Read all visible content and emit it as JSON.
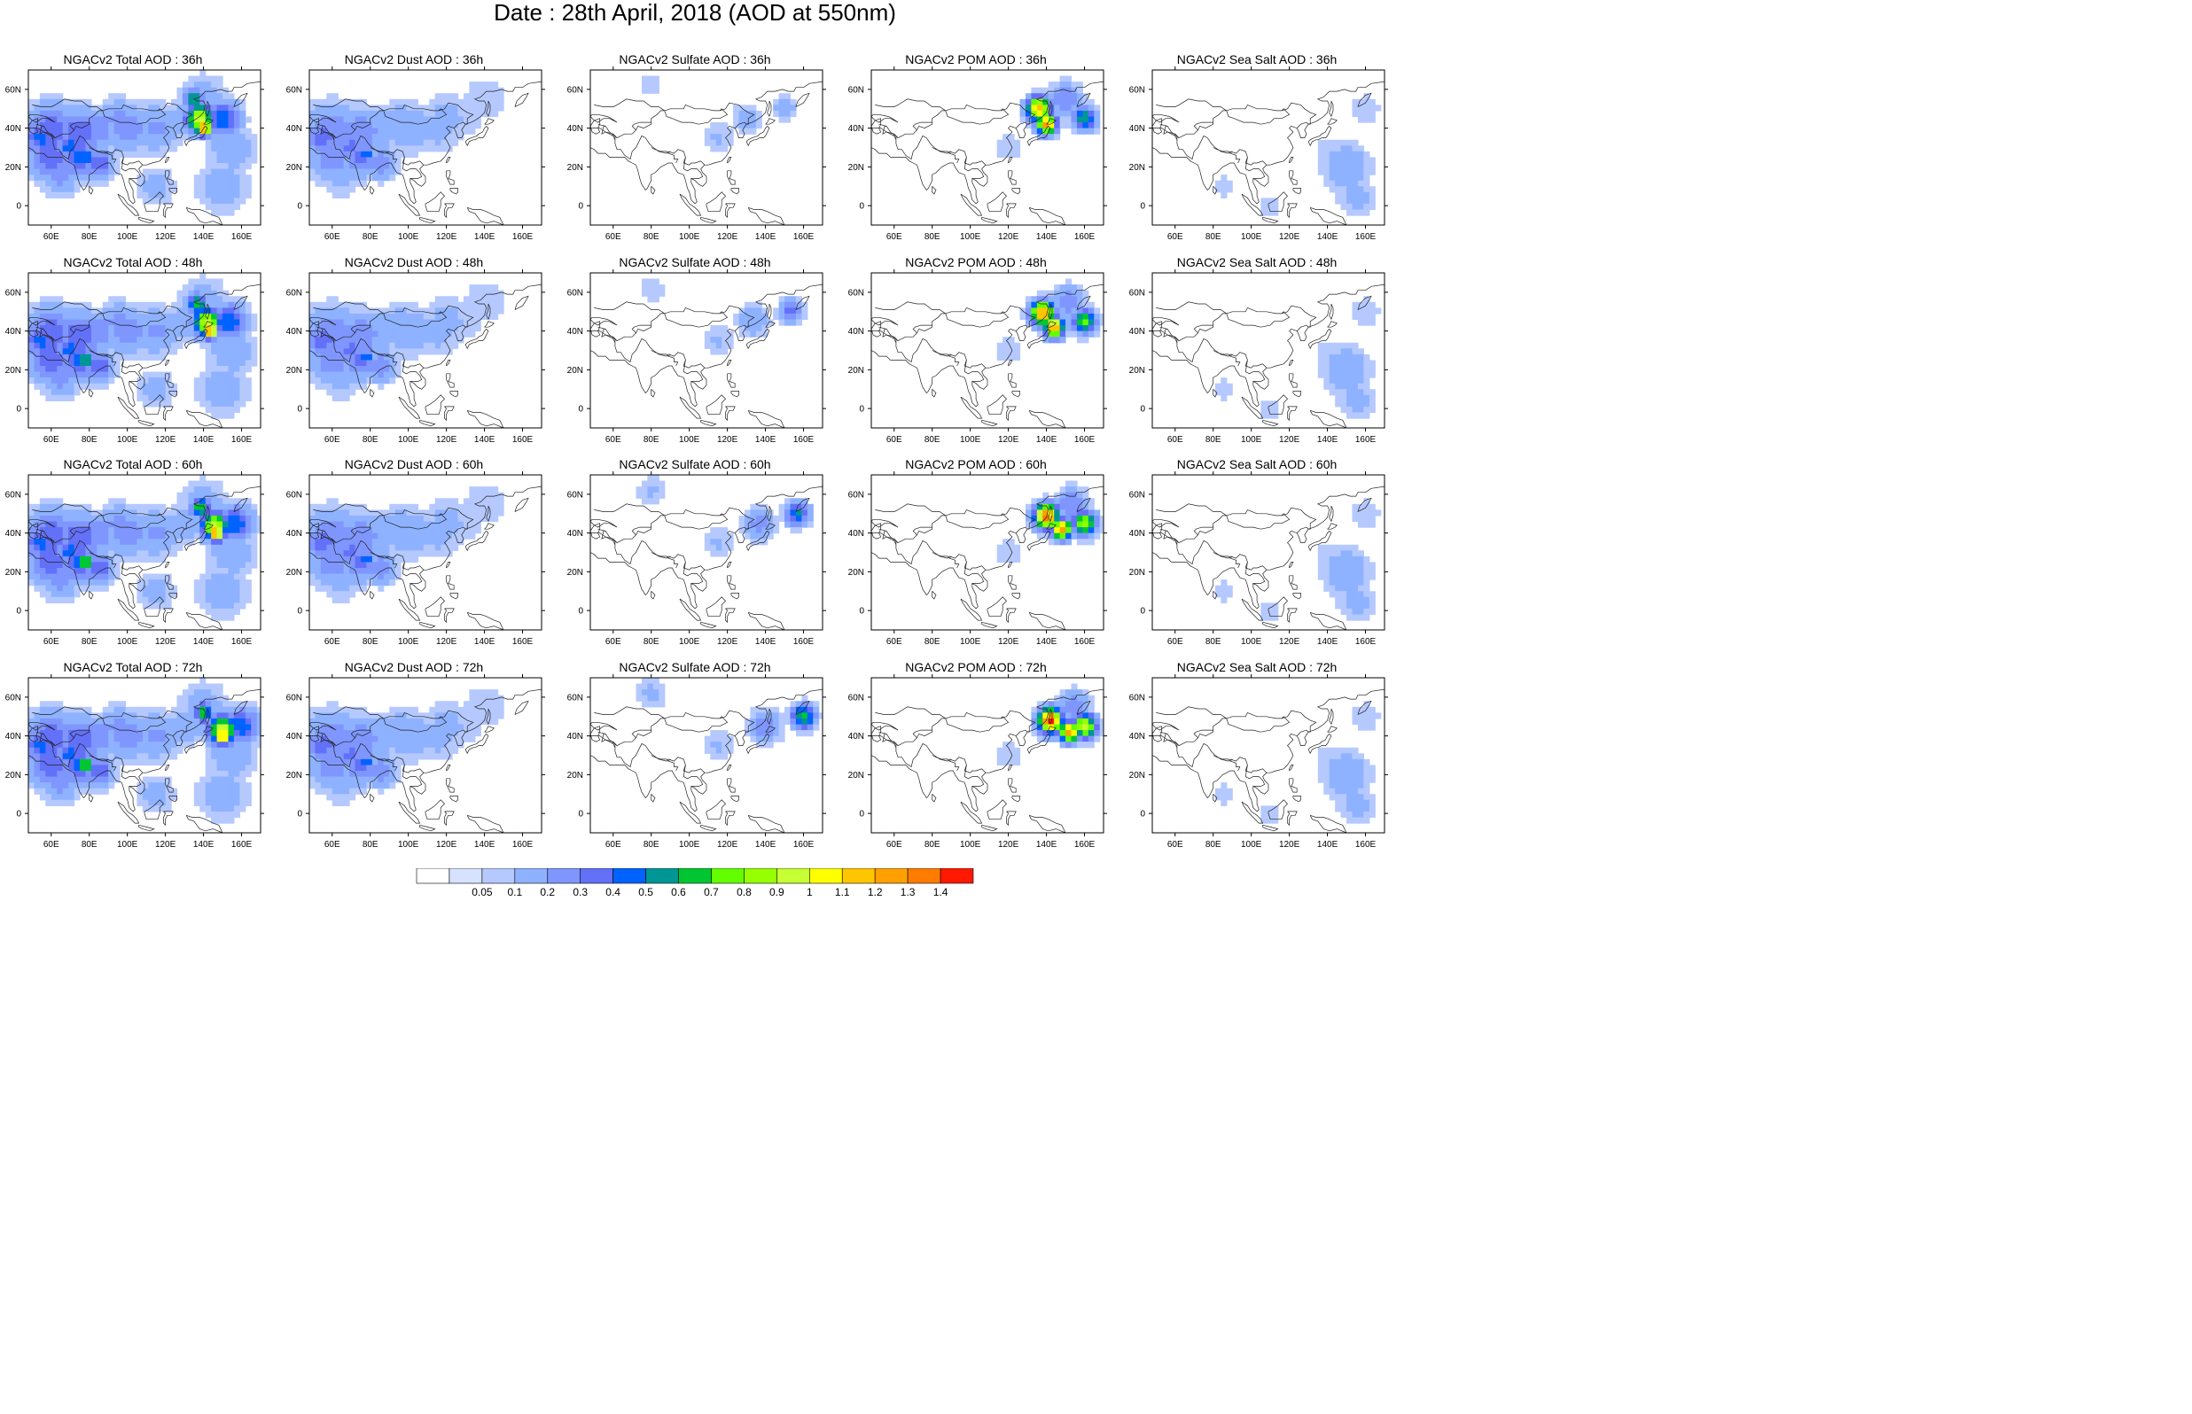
{
  "title": "Date : 28th April, 2018 (AOD at 550nm)",
  "lat_labels": [
    "60N",
    "40N",
    "20N",
    "0"
  ],
  "lon_labels": [
    "60E",
    "80E",
    "100E",
    "120E",
    "140E",
    "160E"
  ],
  "panels": [
    {
      "title": "NGACv2 Total AOD : 36h",
      "field": "total",
      "hour": 36
    },
    {
      "title": "NGACv2 Dust AOD : 36h",
      "field": "dust",
      "hour": 36
    },
    {
      "title": "NGACv2 Sulfate AOD : 36h",
      "field": "sulfate",
      "hour": 36
    },
    {
      "title": "NGACv2 POM AOD : 36h",
      "field": "pom",
      "hour": 36
    },
    {
      "title": "NGACv2 Sea Salt AOD : 36h",
      "field": "seasalt",
      "hour": 36
    },
    {
      "title": "NGACv2 Total AOD : 48h",
      "field": "total",
      "hour": 48
    },
    {
      "title": "NGACv2 Dust AOD : 48h",
      "field": "dust",
      "hour": 48
    },
    {
      "title": "NGACv2 Sulfate AOD : 48h",
      "field": "sulfate",
      "hour": 48
    },
    {
      "title": "NGACv2 POM AOD : 48h",
      "field": "pom",
      "hour": 48
    },
    {
      "title": "NGACv2 Sea Salt AOD : 48h",
      "field": "seasalt",
      "hour": 48
    },
    {
      "title": "NGACv2 Total AOD : 60h",
      "field": "total",
      "hour": 60
    },
    {
      "title": "NGACv2 Dust AOD : 60h",
      "field": "dust",
      "hour": 60
    },
    {
      "title": "NGACv2 Sulfate AOD : 60h",
      "field": "sulfate",
      "hour": 60
    },
    {
      "title": "NGACv2 POM AOD : 60h",
      "field": "pom",
      "hour": 60
    },
    {
      "title": "NGACv2 Sea Salt AOD : 60h",
      "field": "seasalt",
      "hour": 60
    },
    {
      "title": "NGACv2 Total AOD : 72h",
      "field": "total",
      "hour": 72
    },
    {
      "title": "NGACv2 Dust AOD : 72h",
      "field": "dust",
      "hour": 72
    },
    {
      "title": "NGACv2 Sulfate AOD : 72h",
      "field": "sulfate",
      "hour": 72
    },
    {
      "title": "NGACv2 POM AOD : 72h",
      "field": "pom",
      "hour": 72
    },
    {
      "title": "NGACv2 Sea Salt  AOD : 72h",
      "field": "seasalt",
      "hour": 72
    }
  ],
  "colorbar": {
    "labels": [
      "0.05",
      "0.1",
      "0.2",
      "0.3",
      "0.4",
      "0.5",
      "0.6",
      "0.7",
      "0.8",
      "0.9",
      "1",
      "1.1",
      "1.2",
      "1.3",
      "1.4"
    ],
    "colors": [
      "#ffffff",
      "#d6e2ff",
      "#b5c9ff",
      "#8eb2ff",
      "#7f96ff",
      "#6370f8",
      "#0063ff",
      "#009696",
      "#00c633",
      "#63ff00",
      "#96ff00",
      "#c6ff33",
      "#ffff00",
      "#ffc600",
      "#ffa000",
      "#ff7c00",
      "#ff1900"
    ]
  }
}
